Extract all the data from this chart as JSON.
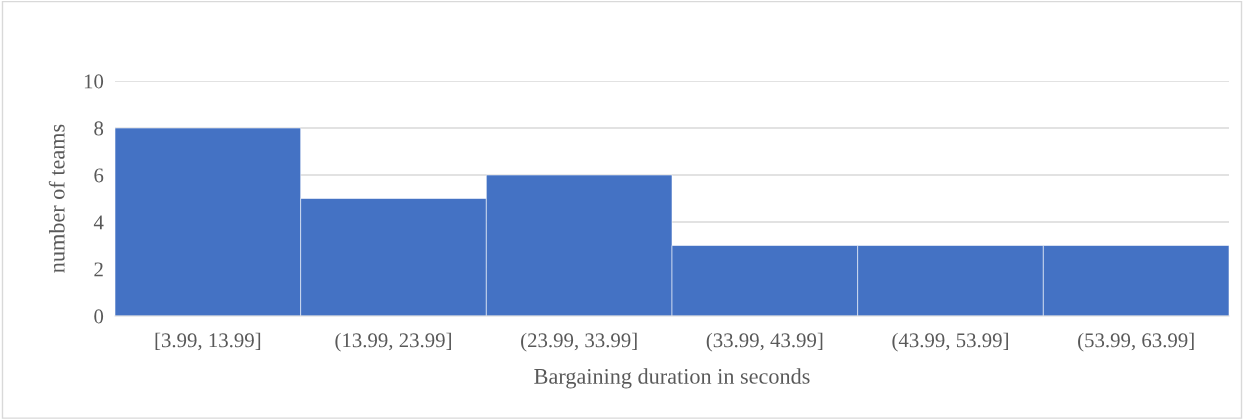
{
  "chart_data": {
    "type": "bar",
    "xlabel": "Bargaining duration in seconds",
    "ylabel": "number of teams",
    "categories": [
      "[3.99, 13.99]",
      "(13.99, 23.99]",
      "(23.99, 33.99]",
      "(33.99, 43.99]",
      "(43.99, 53.99]",
      "(53.99, 63.99]"
    ],
    "values": [
      8,
      5,
      6,
      3,
      3,
      3
    ],
    "color": "#4472c4",
    "ylim": [
      0,
      10
    ],
    "yticks": [
      0,
      2,
      4,
      6,
      8,
      10
    ],
    "grid": "y"
  }
}
